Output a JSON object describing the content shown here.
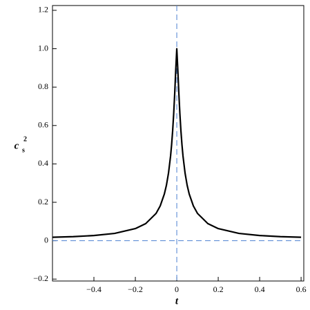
{
  "chart_data": {
    "type": "line",
    "x_label": "t",
    "y_label": "c",
    "y_label_sub": "s",
    "y_label_sup": "2",
    "x": [
      -0.6,
      -0.5,
      -0.4,
      -0.3,
      -0.2,
      -0.15,
      -0.1,
      -0.08,
      -0.06,
      -0.05,
      -0.04,
      -0.03,
      -0.025,
      -0.02,
      -0.015,
      -0.01,
      -0.005,
      0,
      0.005,
      0.01,
      0.015,
      0.02,
      0.025,
      0.03,
      0.04,
      0.05,
      0.06,
      0.08,
      0.1,
      0.15,
      0.2,
      0.3,
      0.4,
      0.5,
      0.6
    ],
    "series": [
      {
        "color": "#000000",
        "values": [
          0.018,
          0.021,
          0.027,
          0.038,
          0.063,
          0.089,
          0.142,
          0.181,
          0.243,
          0.289,
          0.352,
          0.441,
          0.5,
          0.572,
          0.66,
          0.767,
          0.89,
          1.0,
          0.89,
          0.767,
          0.66,
          0.572,
          0.5,
          0.441,
          0.352,
          0.289,
          0.243,
          0.181,
          0.142,
          0.089,
          0.063,
          0.038,
          0.027,
          0.021,
          0.018
        ]
      }
    ],
    "xlim": [
      -0.6,
      0.613
    ],
    "ylim": [
      -0.21,
      1.225
    ],
    "xticks": [
      {
        "value": -0.4,
        "label": "−0.4"
      },
      {
        "value": -0.2,
        "label": "−0.2"
      },
      0,
      0.2,
      0.4,
      0.6
    ],
    "yticks": [
      {
        "value": -0.2,
        "label": "−0.2"
      },
      0,
      0.2,
      0.4,
      0.6,
      0.8,
      {
        "value": 1,
        "label": "1.0"
      },
      1.2
    ],
    "zero_lines": true,
    "zero_line_color": "#4a7fd0"
  }
}
